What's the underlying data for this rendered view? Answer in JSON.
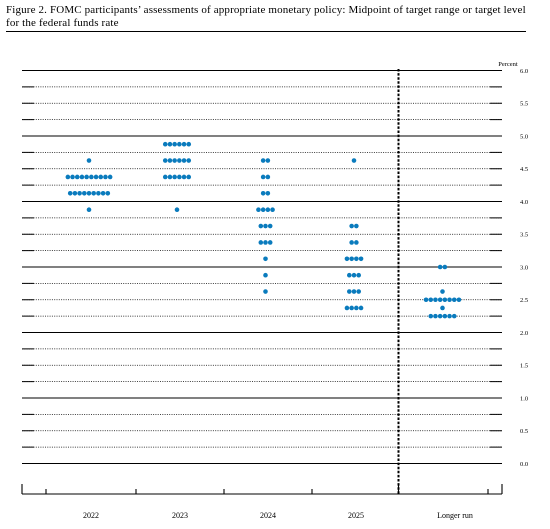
{
  "title": "Figure 2.  FOMC participants’ assessments of appropriate monetary policy:  Midpoint of target range or target level for the federal funds rate",
  "colors": {
    "dot": "#0a7bbd",
    "line": "#000000"
  },
  "chart_data": {
    "type": "scatter",
    "title": "Figure 2.  FOMC participants’ assessments of appropriate monetary policy:  Midpoint of target range or target level for the federal funds rate",
    "ylabel": "Percent",
    "ylim": [
      0,
      6
    ],
    "ytick_step": 0.25,
    "ytick_labels": [
      "6.0",
      "5.5",
      "5.0",
      "4.5",
      "4.0",
      "3.5",
      "3.0",
      "2.5",
      "2.0",
      "1.5",
      "1.0",
      "0.5",
      "0.0"
    ],
    "categories": [
      "2022",
      "2023",
      "2024",
      "2025",
      "Longer run"
    ],
    "grid": true,
    "dots": [
      {
        "category": "2022",
        "values": [
          {
            "y": 4.625,
            "count": 1
          },
          {
            "y": 4.375,
            "count": 10
          },
          {
            "y": 4.125,
            "count": 9
          },
          {
            "y": 3.875,
            "count": 1
          }
        ]
      },
      {
        "category": "2023",
        "values": [
          {
            "y": 4.875,
            "count": 6
          },
          {
            "y": 4.625,
            "count": 6
          },
          {
            "y": 4.375,
            "count": 6
          },
          {
            "y": 3.875,
            "count": 1
          }
        ]
      },
      {
        "category": "2024",
        "values": [
          {
            "y": 4.625,
            "count": 2
          },
          {
            "y": 4.375,
            "count": 2
          },
          {
            "y": 4.125,
            "count": 2
          },
          {
            "y": 3.875,
            "count": 4
          },
          {
            "y": 3.625,
            "count": 3
          },
          {
            "y": 3.375,
            "count": 3
          },
          {
            "y": 3.125,
            "count": 1
          },
          {
            "y": 2.875,
            "count": 1
          },
          {
            "y": 2.625,
            "count": 1
          }
        ]
      },
      {
        "category": "2025",
        "values": [
          {
            "y": 4.625,
            "count": 1
          },
          {
            "y": 3.625,
            "count": 2
          },
          {
            "y": 3.375,
            "count": 2
          },
          {
            "y": 3.125,
            "count": 4
          },
          {
            "y": 2.875,
            "count": 3
          },
          {
            "y": 2.625,
            "count": 3
          },
          {
            "y": 2.375,
            "count": 4
          }
        ]
      },
      {
        "category": "Longer run",
        "values": [
          {
            "y": 3.0,
            "count": 2
          },
          {
            "y": 2.625,
            "count": 1
          },
          {
            "y": 2.5,
            "count": 8
          },
          {
            "y": 2.375,
            "count": 1
          },
          {
            "y": 2.25,
            "count": 6
          }
        ]
      }
    ]
  }
}
